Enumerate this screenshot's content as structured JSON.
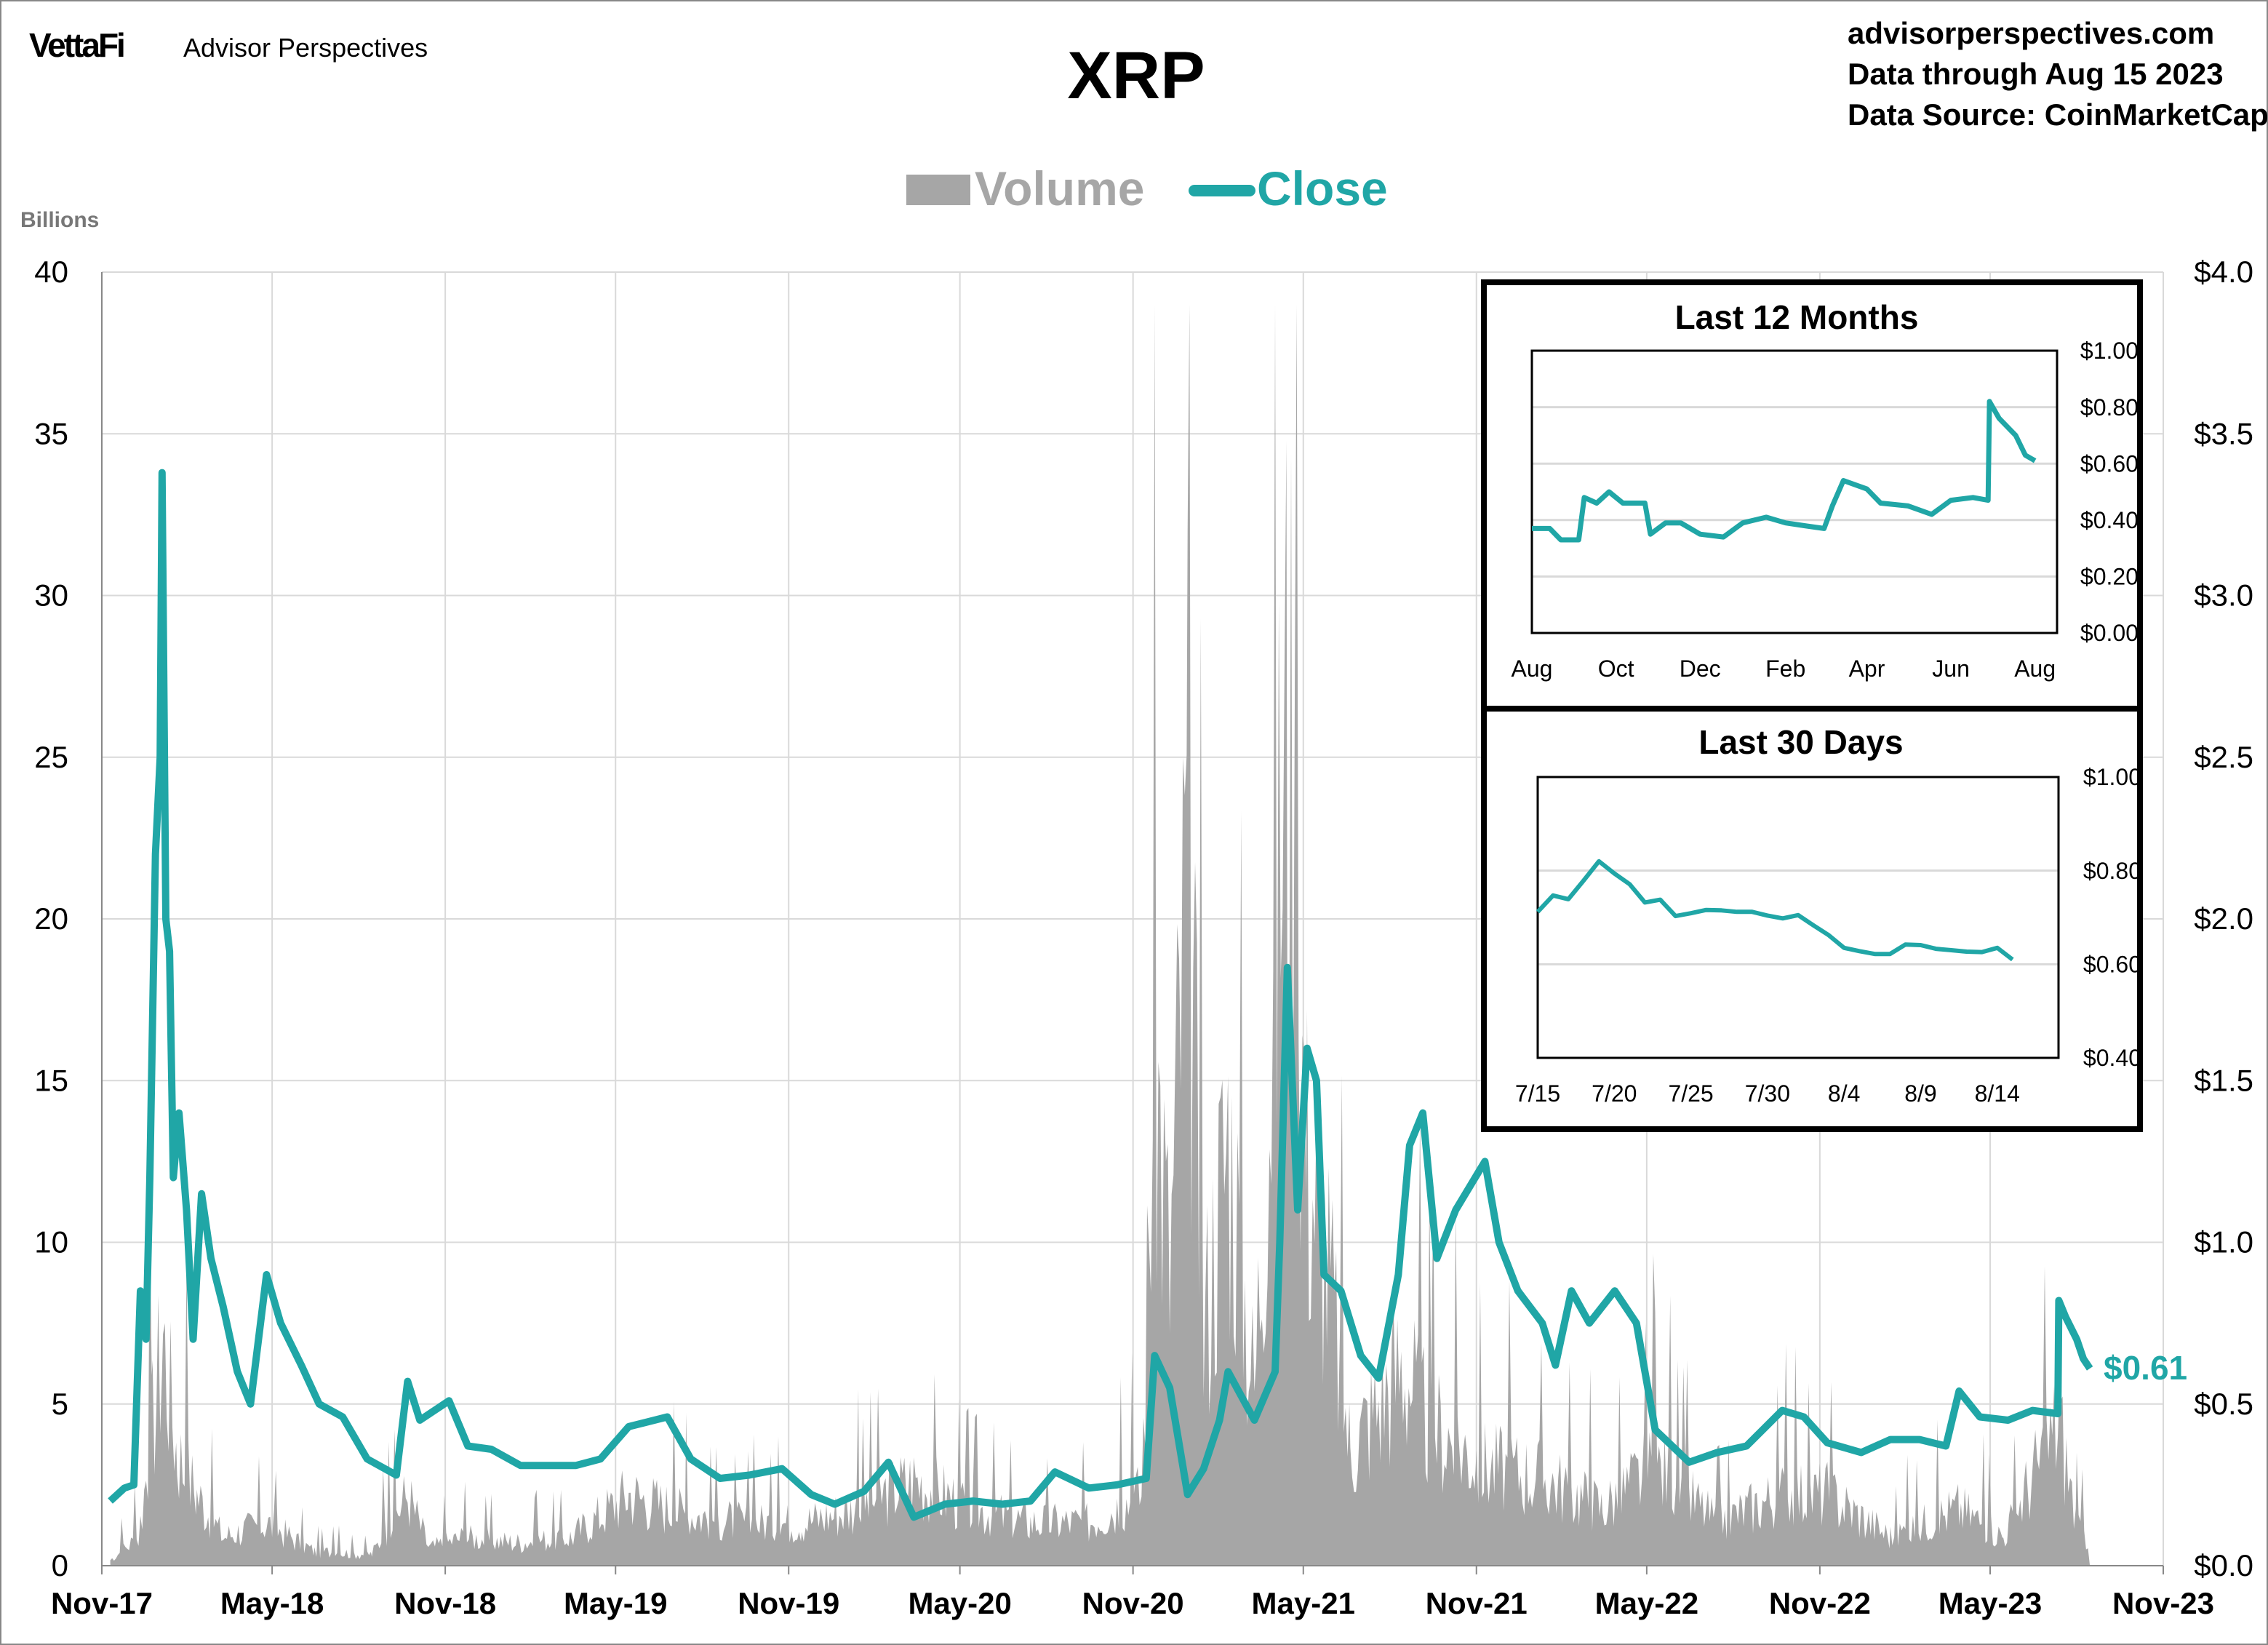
{
  "header": {
    "logo": "VettaFi",
    "brand": "Advisor Perspectives",
    "title": "XRP",
    "site": "advisorperspectives.com",
    "data_through": "Data through Aug 15 2023",
    "data_source": "Data Source: CoinMarketCap"
  },
  "colors": {
    "close": "#20A6A6",
    "volume": "#A6A6A6",
    "grid": "#D9D9D9"
  },
  "chart_data": [
    {
      "type": "area+line",
      "legend": [
        "Volume",
        "Close"
      ],
      "legend_position": "top",
      "ylabel_left": "Billions",
      "ylim_left": [
        0,
        40
      ],
      "yticks_left": [
        "0",
        "5",
        "10",
        "15",
        "20",
        "25",
        "30",
        "35",
        "40"
      ],
      "ylim_right": [
        0,
        4
      ],
      "yticks_right": [
        "$0.0",
        "$0.5",
        "$1.0",
        "$1.5",
        "$2.0",
        "$2.5",
        "$3.0",
        "$3.5",
        "$4.0"
      ],
      "xlim": [
        "2017-11-01",
        "2023-11-01"
      ],
      "xticks": [
        {
          "date": "2017-11-01",
          "label": "Nov-17"
        },
        {
          "date": "2018-05-01",
          "label": "May-18"
        },
        {
          "date": "2018-11-01",
          "label": "Nov-18"
        },
        {
          "date": "2019-05-01",
          "label": "May-19"
        },
        {
          "date": "2019-11-01",
          "label": "Nov-19"
        },
        {
          "date": "2020-05-01",
          "label": "May-20"
        },
        {
          "date": "2020-11-01",
          "label": "Nov-20"
        },
        {
          "date": "2021-05-01",
          "label": "May-21"
        },
        {
          "date": "2021-11-01",
          "label": "Nov-21"
        },
        {
          "date": "2022-05-01",
          "label": "May-22"
        },
        {
          "date": "2022-11-01",
          "label": "Nov-22"
        },
        {
          "date": "2023-05-01",
          "label": "May-23"
        },
        {
          "date": "2023-11-01",
          "label": "Nov-23"
        }
      ],
      "grid": true,
      "last_label": "$0.61",
      "close": [
        [
          "2017-11-10",
          0.2
        ],
        [
          "2017-11-25",
          0.24
        ],
        [
          "2017-12-05",
          0.25
        ],
        [
          "2017-12-12",
          0.85
        ],
        [
          "2017-12-18",
          0.7
        ],
        [
          "2017-12-22",
          1.2
        ],
        [
          "2017-12-28",
          2.2
        ],
        [
          "2018-01-02",
          2.5
        ],
        [
          "2018-01-04",
          3.38
        ],
        [
          "2018-01-08",
          2.0
        ],
        [
          "2018-01-12",
          1.9
        ],
        [
          "2018-01-16",
          1.2
        ],
        [
          "2018-01-22",
          1.4
        ],
        [
          "2018-01-30",
          1.1
        ],
        [
          "2018-02-06",
          0.7
        ],
        [
          "2018-02-15",
          1.15
        ],
        [
          "2018-02-25",
          0.95
        ],
        [
          "2018-03-10",
          0.8
        ],
        [
          "2018-03-25",
          0.6
        ],
        [
          "2018-04-08",
          0.5
        ],
        [
          "2018-04-25",
          0.9
        ],
        [
          "2018-05-10",
          0.75
        ],
        [
          "2018-06-01",
          0.62
        ],
        [
          "2018-06-20",
          0.5
        ],
        [
          "2018-07-15",
          0.46
        ],
        [
          "2018-08-10",
          0.33
        ],
        [
          "2018-09-10",
          0.28
        ],
        [
          "2018-09-22",
          0.57
        ],
        [
          "2018-10-05",
          0.45
        ],
        [
          "2018-11-05",
          0.51
        ],
        [
          "2018-11-25",
          0.37
        ],
        [
          "2018-12-20",
          0.36
        ],
        [
          "2019-01-20",
          0.31
        ],
        [
          "2019-02-20",
          0.31
        ],
        [
          "2019-03-20",
          0.31
        ],
        [
          "2019-04-15",
          0.33
        ],
        [
          "2019-05-15",
          0.43
        ],
        [
          "2019-06-25",
          0.46
        ],
        [
          "2019-07-20",
          0.33
        ],
        [
          "2019-08-20",
          0.27
        ],
        [
          "2019-09-20",
          0.28
        ],
        [
          "2019-10-25",
          0.3
        ],
        [
          "2019-11-25",
          0.22
        ],
        [
          "2019-12-20",
          0.19
        ],
        [
          "2020-01-20",
          0.23
        ],
        [
          "2020-02-15",
          0.32
        ],
        [
          "2020-03-13",
          0.15
        ],
        [
          "2020-04-15",
          0.19
        ],
        [
          "2020-05-15",
          0.2
        ],
        [
          "2020-06-15",
          0.19
        ],
        [
          "2020-07-15",
          0.2
        ],
        [
          "2020-08-10",
          0.29
        ],
        [
          "2020-09-15",
          0.24
        ],
        [
          "2020-10-15",
          0.25
        ],
        [
          "2020-11-15",
          0.27
        ],
        [
          "2020-11-24",
          0.65
        ],
        [
          "2020-12-10",
          0.55
        ],
        [
          "2020-12-29",
          0.22
        ],
        [
          "2021-01-15",
          0.3
        ],
        [
          "2021-02-01",
          0.45
        ],
        [
          "2021-02-10",
          0.6
        ],
        [
          "2021-03-10",
          0.45
        ],
        [
          "2021-04-01",
          0.6
        ],
        [
          "2021-04-06",
          1.0
        ],
        [
          "2021-04-14",
          1.85
        ],
        [
          "2021-04-25",
          1.1
        ],
        [
          "2021-05-05",
          1.6
        ],
        [
          "2021-05-15",
          1.5
        ],
        [
          "2021-05-23",
          0.9
        ],
        [
          "2021-06-10",
          0.85
        ],
        [
          "2021-07-01",
          0.65
        ],
        [
          "2021-07-20",
          0.58
        ],
        [
          "2021-08-10",
          0.9
        ],
        [
          "2021-08-22",
          1.3
        ],
        [
          "2021-09-05",
          1.4
        ],
        [
          "2021-09-20",
          0.95
        ],
        [
          "2021-10-10",
          1.1
        ],
        [
          "2021-11-10",
          1.25
        ],
        [
          "2021-11-25",
          1.0
        ],
        [
          "2021-12-15",
          0.85
        ],
        [
          "2022-01-10",
          0.75
        ],
        [
          "2022-01-24",
          0.62
        ],
        [
          "2022-02-10",
          0.85
        ],
        [
          "2022-03-01",
          0.75
        ],
        [
          "2022-03-28",
          0.85
        ],
        [
          "2022-04-20",
          0.75
        ],
        [
          "2022-05-10",
          0.42
        ],
        [
          "2022-06-15",
          0.32
        ],
        [
          "2022-07-15",
          0.35
        ],
        [
          "2022-08-15",
          0.37
        ],
        [
          "2022-09-22",
          0.48
        ],
        [
          "2022-10-15",
          0.46
        ],
        [
          "2022-11-09",
          0.38
        ],
        [
          "2022-12-15",
          0.35
        ],
        [
          "2023-01-15",
          0.39
        ],
        [
          "2023-02-15",
          0.39
        ],
        [
          "2023-03-15",
          0.37
        ],
        [
          "2023-03-29",
          0.54
        ],
        [
          "2023-04-20",
          0.46
        ],
        [
          "2023-05-20",
          0.45
        ],
        [
          "2023-06-15",
          0.48
        ],
        [
          "2023-07-12",
          0.47
        ],
        [
          "2023-07-13",
          0.82
        ],
        [
          "2023-07-20",
          0.77
        ],
        [
          "2023-08-01",
          0.7
        ],
        [
          "2023-08-08",
          0.64
        ],
        [
          "2023-08-15",
          0.61
        ]
      ],
      "volume": [
        [
          "2017-11-10",
          0.2
        ],
        [
          "2017-12-10",
          1.0
        ],
        [
          "2017-12-25",
          5.0
        ],
        [
          "2018-01-05",
          8.0
        ],
        [
          "2018-01-20",
          4.0
        ],
        [
          "2018-02-10",
          2.5
        ],
        [
          "2018-03-10",
          1.0
        ],
        [
          "2018-04-25",
          1.5
        ],
        [
          "2018-06-15",
          0.5
        ],
        [
          "2018-08-15",
          0.4
        ],
        [
          "2018-09-22",
          2.5
        ],
        [
          "2018-10-15",
          0.6
        ],
        [
          "2018-11-20",
          1.0
        ],
        [
          "2019-01-15",
          0.8
        ],
        [
          "2019-03-15",
          1.0
        ],
        [
          "2019-05-15",
          2.5
        ],
        [
          "2019-07-15",
          1.8
        ],
        [
          "2019-09-15",
          1.5
        ],
        [
          "2019-11-15",
          1.5
        ],
        [
          "2020-01-15",
          2.0
        ],
        [
          "2020-03-13",
          3.0
        ],
        [
          "2020-05-15",
          2.0
        ],
        [
          "2020-07-15",
          1.5
        ],
        [
          "2020-09-15",
          1.5
        ],
        [
          "2020-11-10",
          2.5
        ],
        [
          "2020-11-24",
          18.0
        ],
        [
          "2020-12-10",
          10.0
        ],
        [
          "2020-12-29",
          25.0
        ],
        [
          "2021-01-15",
          8.0
        ],
        [
          "2021-02-10",
          15.0
        ],
        [
          "2021-03-10",
          6.0
        ],
        [
          "2021-04-14",
          30.0
        ],
        [
          "2021-05-05",
          14.0
        ],
        [
          "2021-05-20",
          12.0
        ],
        [
          "2021-06-20",
          4.0
        ],
        [
          "2021-08-15",
          7.0
        ],
        [
          "2021-09-10",
          5.0
        ],
        [
          "2021-11-10",
          3.5
        ],
        [
          "2022-01-15",
          3.0
        ],
        [
          "2022-03-15",
          2.0
        ],
        [
          "2022-05-10",
          3.5
        ],
        [
          "2022-07-15",
          1.5
        ],
        [
          "2022-09-22",
          2.5
        ],
        [
          "2022-11-09",
          2.5
        ],
        [
          "2023-01-15",
          1.0
        ],
        [
          "2023-03-29",
          2.0
        ],
        [
          "2023-05-15",
          1.0
        ],
        [
          "2023-07-13",
          5.0
        ],
        [
          "2023-08-01",
          1.5
        ],
        [
          "2023-08-15",
          0.8
        ]
      ]
    },
    {
      "type": "line",
      "title": "Last 12 Months",
      "ylim": [
        0,
        1
      ],
      "yticks": [
        "$0.00",
        "$0.20",
        "$0.40",
        "$0.60",
        "$0.80",
        "$1.00"
      ],
      "xlim": [
        "2022-08-15",
        "2023-08-31"
      ],
      "xticks": [
        {
          "date": "2022-08-15",
          "label": "Aug"
        },
        {
          "date": "2022-10-15",
          "label": "Oct"
        },
        {
          "date": "2022-12-15",
          "label": "Dec"
        },
        {
          "date": "2023-02-15",
          "label": "Feb"
        },
        {
          "date": "2023-04-15",
          "label": "Apr"
        },
        {
          "date": "2023-06-15",
          "label": "Jun"
        },
        {
          "date": "2023-08-15",
          "label": "Aug"
        }
      ],
      "values": [
        [
          "2022-08-15",
          0.37
        ],
        [
          "2022-08-28",
          0.37
        ],
        [
          "2022-09-05",
          0.33
        ],
        [
          "2022-09-18",
          0.33
        ],
        [
          "2022-09-22",
          0.48
        ],
        [
          "2022-10-01",
          0.46
        ],
        [
          "2022-10-10",
          0.5
        ],
        [
          "2022-10-20",
          0.46
        ],
        [
          "2022-11-05",
          0.46
        ],
        [
          "2022-11-09",
          0.35
        ],
        [
          "2022-11-20",
          0.39
        ],
        [
          "2022-12-01",
          0.39
        ],
        [
          "2022-12-15",
          0.35
        ],
        [
          "2023-01-01",
          0.34
        ],
        [
          "2023-01-15",
          0.39
        ],
        [
          "2023-02-01",
          0.41
        ],
        [
          "2023-02-15",
          0.39
        ],
        [
          "2023-03-01",
          0.38
        ],
        [
          "2023-03-15",
          0.37
        ],
        [
          "2023-03-21",
          0.45
        ],
        [
          "2023-03-29",
          0.54
        ],
        [
          "2023-04-15",
          0.51
        ],
        [
          "2023-04-25",
          0.46
        ],
        [
          "2023-05-15",
          0.45
        ],
        [
          "2023-06-01",
          0.42
        ],
        [
          "2023-06-15",
          0.47
        ],
        [
          "2023-07-01",
          0.48
        ],
        [
          "2023-07-12",
          0.47
        ],
        [
          "2023-07-13",
          0.82
        ],
        [
          "2023-07-20",
          0.76
        ],
        [
          "2023-08-01",
          0.7
        ],
        [
          "2023-08-08",
          0.63
        ],
        [
          "2023-08-15",
          0.61
        ]
      ]
    },
    {
      "type": "line",
      "title": "Last 30 Days",
      "ylim": [
        0.4,
        1
      ],
      "yticks": [
        "$0.40",
        "$0.60",
        "$0.80",
        "$1.00"
      ],
      "xlim": [
        "2023-07-15",
        "2023-08-18"
      ],
      "xticks": [
        {
          "date": "2023-07-15",
          "label": "7/15"
        },
        {
          "date": "2023-07-20",
          "label": "7/20"
        },
        {
          "date": "2023-07-25",
          "label": "7/25"
        },
        {
          "date": "2023-07-30",
          "label": "7/30"
        },
        {
          "date": "2023-08-04",
          "label": "8/4"
        },
        {
          "date": "2023-08-09",
          "label": "8/9"
        },
        {
          "date": "2023-08-14",
          "label": "8/14"
        }
      ],
      "values": [
        [
          "2023-07-15",
          0.712
        ],
        [
          "2023-07-16",
          0.747
        ],
        [
          "2023-07-17",
          0.739
        ],
        [
          "2023-07-18",
          0.779
        ],
        [
          "2023-07-19",
          0.82
        ],
        [
          "2023-07-20",
          0.794
        ],
        [
          "2023-07-21",
          0.771
        ],
        [
          "2023-07-22",
          0.732
        ],
        [
          "2023-07-23",
          0.738
        ],
        [
          "2023-07-24",
          0.703
        ],
        [
          "2023-07-25",
          0.709
        ],
        [
          "2023-07-26",
          0.716
        ],
        [
          "2023-07-27",
          0.715
        ],
        [
          "2023-07-28",
          0.712
        ],
        [
          "2023-07-29",
          0.712
        ],
        [
          "2023-07-30",
          0.704
        ],
        [
          "2023-07-31",
          0.698
        ],
        [
          "2023-08-01",
          0.705
        ],
        [
          "2023-08-02",
          0.683
        ],
        [
          "2023-08-03",
          0.662
        ],
        [
          "2023-08-04",
          0.635
        ],
        [
          "2023-08-05",
          0.628
        ],
        [
          "2023-08-06",
          0.622
        ],
        [
          "2023-08-07",
          0.622
        ],
        [
          "2023-08-08",
          0.642
        ],
        [
          "2023-08-09",
          0.641
        ],
        [
          "2023-08-10",
          0.633
        ],
        [
          "2023-08-11",
          0.63
        ],
        [
          "2023-08-12",
          0.627
        ],
        [
          "2023-08-13",
          0.626
        ],
        [
          "2023-08-14",
          0.635
        ],
        [
          "2023-08-15",
          0.61
        ]
      ]
    }
  ]
}
